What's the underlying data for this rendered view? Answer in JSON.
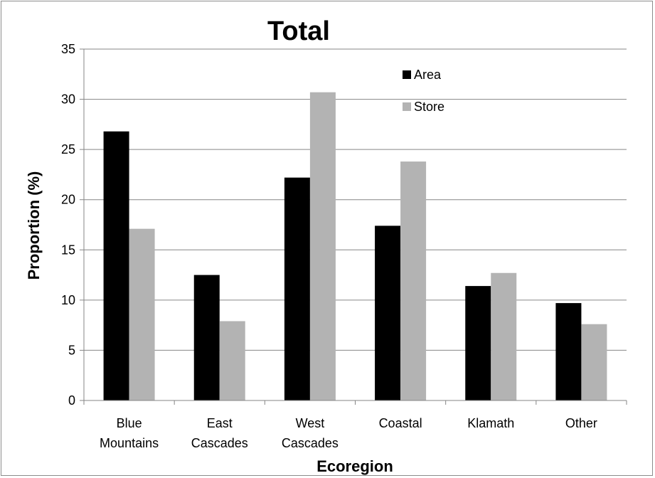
{
  "chart_data": {
    "type": "bar",
    "title": "Total",
    "xlabel": "Ecoregion",
    "ylabel": "Proportion (%)",
    "categories": [
      [
        "Blue",
        "Mountains"
      ],
      [
        "East",
        "Cascades"
      ],
      [
        "West",
        "Cascades"
      ],
      [
        "Coastal"
      ],
      [
        "Klamath"
      ],
      [
        "Other"
      ]
    ],
    "series": [
      {
        "name": "Area",
        "color": "#000000",
        "values": [
          26.8,
          12.5,
          22.2,
          17.4,
          11.4,
          9.7
        ]
      },
      {
        "name": "Store",
        "color": "#b3b3b3",
        "values": [
          17.1,
          7.9,
          30.7,
          23.8,
          12.7,
          7.6
        ]
      }
    ],
    "ylim": [
      0,
      35
    ],
    "yticks": [
      0,
      5,
      10,
      15,
      20,
      25,
      30,
      35
    ],
    "grid": true,
    "legend_position": "top-right"
  }
}
